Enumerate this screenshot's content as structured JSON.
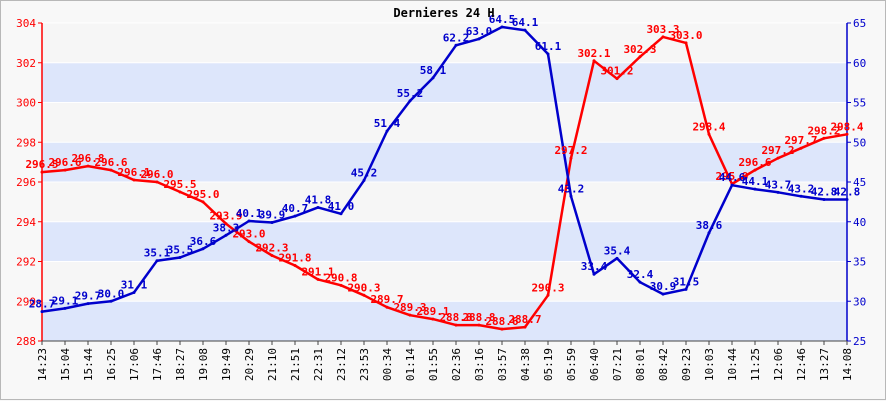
{
  "chart_data": {
    "type": "line",
    "title": "Dernieres 24 H",
    "xlabel": "",
    "ylabel": "",
    "grid": true,
    "band_colors": [
      "#dde6fb",
      "#f6f6f6"
    ],
    "colors": {
      "left_axis": "#ff0000",
      "right_axis": "#0000cc",
      "series_left": "#ff0000",
      "series_right": "#0000cc"
    },
    "y_left": {
      "range": [
        288,
        304
      ],
      "ticks": [
        "288",
        "290",
        "292",
        "294",
        "296",
        "298",
        "300",
        "302",
        "304"
      ]
    },
    "y_right": {
      "range": [
        25,
        65
      ],
      "ticks": [
        "25",
        "30",
        "35",
        "40",
        "45",
        "50",
        "55",
        "60",
        "65"
      ]
    },
    "x_ticks": [
      "14:23",
      "15:04",
      "15:44",
      "16:25",
      "17:06",
      "17:46",
      "18:27",
      "19:08",
      "19:49",
      "20:29",
      "21:10",
      "21:51",
      "22:31",
      "23:12",
      "23:53",
      "00:34",
      "01:14",
      "01:55",
      "02:36",
      "03:16",
      "03:57",
      "04:38",
      "05:19",
      "05:59",
      "06:40",
      "07:21",
      "08:01",
      "08:42",
      "09:23",
      "10:03",
      "10:44",
      "11:25",
      "12:06",
      "12:46",
      "13:27",
      "14:08"
    ],
    "series": [
      {
        "axis": "left",
        "color": "#ff0000",
        "points": [
          {
            "i": 0,
            "v": 296.5,
            "label": "296.5"
          },
          {
            "i": 1,
            "v": 296.6,
            "label": "296.6"
          },
          {
            "i": 2,
            "v": 296.8,
            "label": "296.8"
          },
          {
            "i": 3,
            "v": 296.6,
            "label": "296.6"
          },
          {
            "i": 4,
            "v": 296.1,
            "label": "296.1"
          },
          {
            "i": 5,
            "v": 296.0,
            "label": "296.0"
          },
          {
            "i": 6,
            "v": 295.5,
            "label": "295.5"
          },
          {
            "i": 7,
            "v": 295.0,
            "label": "295.0"
          },
          {
            "i": 8,
            "v": 293.9,
            "label": "293.9"
          },
          {
            "i": 9,
            "v": 293.0,
            "label": "293.0"
          },
          {
            "i": 10,
            "v": 292.3,
            "label": "292.3"
          },
          {
            "i": 11,
            "v": 291.8,
            "label": "291.8"
          },
          {
            "i": 12,
            "v": 291.1,
            "label": "291.1"
          },
          {
            "i": 13,
            "v": 290.8,
            "label": "290.8"
          },
          {
            "i": 14,
            "v": 290.3,
            "label": "290.3"
          },
          {
            "i": 15,
            "v": 289.7,
            "label": "289.7"
          },
          {
            "i": 16,
            "v": 289.3,
            "label": "289.3"
          },
          {
            "i": 17,
            "v": 289.1,
            "label": "289.1"
          },
          {
            "i": 18,
            "v": 288.8,
            "label": "288.8"
          },
          {
            "i": 19,
            "v": 288.8,
            "label": "288.8"
          },
          {
            "i": 20,
            "v": 288.6,
            "label": "288.6"
          },
          {
            "i": 21,
            "v": 288.7,
            "label": "288.7"
          },
          {
            "i": 22,
            "v": 290.3,
            "label": "290.3"
          },
          {
            "i": 23,
            "v": 297.2,
            "label": "297.2"
          },
          {
            "i": 24,
            "v": 302.1,
            "label": "302.1"
          },
          {
            "i": 25,
            "v": 301.2,
            "label": "301.2"
          },
          {
            "i": 26,
            "v": 302.3,
            "label": "302.3"
          },
          {
            "i": 27,
            "v": 303.3,
            "label": "303.3"
          },
          {
            "i": 28,
            "v": 303.0,
            "label": "303.0"
          },
          {
            "i": 29,
            "v": 298.4,
            "label": "298.4"
          },
          {
            "i": 30,
            "v": 295.9,
            "label": "295.9"
          },
          {
            "i": 31,
            "v": 296.6,
            "label": "296.6"
          },
          {
            "i": 32,
            "v": 297.2,
            "label": "297.2"
          },
          {
            "i": 33,
            "v": 297.7,
            "label": "297.7"
          },
          {
            "i": 34,
            "v": 298.2,
            "label": "298.2"
          },
          {
            "i": 35,
            "v": 298.4,
            "label": "298.4"
          }
        ]
      },
      {
        "axis": "right",
        "color": "#0000cc",
        "points": [
          {
            "i": 0,
            "v": 28.7,
            "label": "28.7"
          },
          {
            "i": 1,
            "v": 29.1,
            "label": "29.1"
          },
          {
            "i": 2,
            "v": 29.7,
            "label": "29.7"
          },
          {
            "i": 3,
            "v": 30.0,
            "label": "30.0"
          },
          {
            "i": 4,
            "v": 31.1,
            "label": "31.1"
          },
          {
            "i": 5,
            "v": 35.1,
            "label": "35.1"
          },
          {
            "i": 6,
            "v": 35.5,
            "label": "35.5"
          },
          {
            "i": 7,
            "v": 36.6,
            "label": "36.6"
          },
          {
            "i": 8,
            "v": 38.3,
            "label": "38.3"
          },
          {
            "i": 9,
            "v": 40.1,
            "label": "40.1"
          },
          {
            "i": 10,
            "v": 39.9,
            "label": "39.9"
          },
          {
            "i": 11,
            "v": 40.7,
            "label": "40.7"
          },
          {
            "i": 12,
            "v": 41.8,
            "label": "41.8"
          },
          {
            "i": 13,
            "v": 41.0,
            "label": "41.0"
          },
          {
            "i": 14,
            "v": 45.2,
            "label": "45.2"
          },
          {
            "i": 15,
            "v": 51.4,
            "label": "51.4"
          },
          {
            "i": 16,
            "v": 55.2,
            "label": "55.2"
          },
          {
            "i": 17,
            "v": 58.1,
            "label": "58.1"
          },
          {
            "i": 18,
            "v": 62.2,
            "label": "62.2"
          },
          {
            "i": 19,
            "v": 63.0,
            "label": "63.0"
          },
          {
            "i": 20,
            "v": 64.5,
            "label": "64.5"
          },
          {
            "i": 21,
            "v": 64.1,
            "label": "64.1"
          },
          {
            "i": 22,
            "v": 61.1,
            "label": "61.1"
          },
          {
            "i": 23,
            "v": 43.2,
            "label": "43.2"
          },
          {
            "i": 24,
            "v": 33.4,
            "label": "33.4"
          },
          {
            "i": 25,
            "v": 35.4,
            "label": "35.4"
          },
          {
            "i": 26,
            "v": 32.4,
            "label": "32.4"
          },
          {
            "i": 27,
            "v": 30.9,
            "label": "30.9"
          },
          {
            "i": 28,
            "v": 31.5,
            "label": "31.5"
          },
          {
            "i": 29,
            "v": 38.6,
            "label": "38.6"
          },
          {
            "i": 30,
            "v": 44.6,
            "label": "44.6"
          },
          {
            "i": 31,
            "v": 44.1,
            "label": "44.1"
          },
          {
            "i": 32,
            "v": 43.7,
            "label": "43.7"
          },
          {
            "i": 33,
            "v": 43.2,
            "label": "43.2"
          },
          {
            "i": 34,
            "v": 42.8,
            "label": "42.8"
          },
          {
            "i": 35,
            "v": 42.8,
            "label": "42.8"
          }
        ]
      }
    ]
  }
}
